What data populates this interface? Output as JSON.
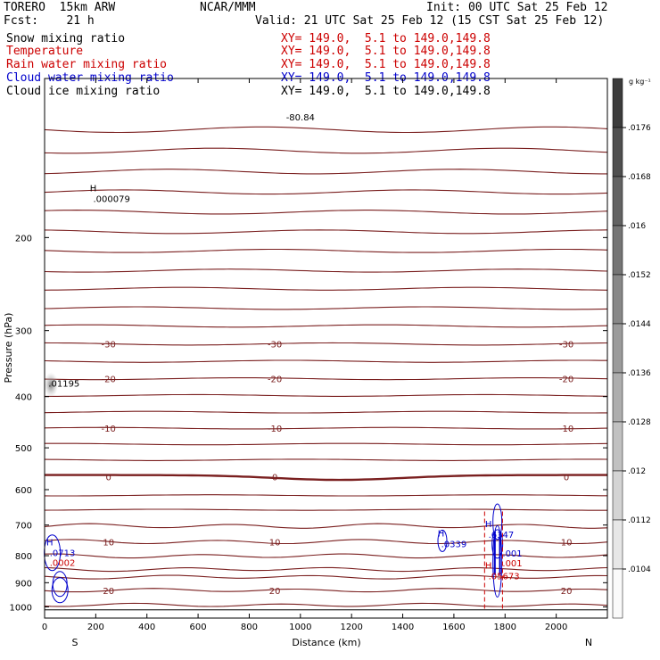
{
  "header": {
    "model": "TORERO  15km ARW",
    "center": "NCAR/MMM",
    "init": "Init: 00 UTC Sat 25 Feb 12",
    "fcst": "Fcst:    21 h",
    "valid": "Valid: 21 UTC Sat 25 Feb 12 (15 CST Sat 25 Feb 12)"
  },
  "fields": [
    {
      "name": "Snow mixing ratio",
      "xy": "",
      "color": "#000000"
    },
    {
      "name": "Temperature",
      "xy": "XY= 149.0,  5.1 to 149.0,149.8",
      "color": "#cc0000"
    },
    {
      "name": "Rain water mixing ratio",
      "xy": "XY= 149.0,  5.1 to 149.0,149.8",
      "color": "#cc0000"
    },
    {
      "name": "Cloud water mixing ratio",
      "xy": "XY= 149.0,  5.1 to 149.0,149.8",
      "color": "#0000cc"
    },
    {
      "name": "Cloud ice mixing ratio",
      "xy": "XY= 149.0,  5.1 to 149.0,149.8",
      "color": "#000000"
    }
  ],
  "snow_xy": "XY= 149.0,  5.1 to 149.0,149.8",
  "colors": {
    "temp": "#7a1f1f",
    "cloud": "#0000cc",
    "rain": "#cc0000",
    "ground": "#000000"
  },
  "chart_data": {
    "type": "line",
    "title": "",
    "xlabel": "Distance (km)",
    "ylabel": "Pressure (hPa)",
    "xlim": [
      0,
      2200
    ],
    "ylim": [
      1050,
      100
    ],
    "yscale": "log",
    "x_ticks": [
      0,
      200,
      400,
      600,
      800,
      1000,
      1200,
      1400,
      1600,
      1800,
      2000
    ],
    "y_ticks": [
      200,
      300,
      400,
      500,
      600,
      700,
      800,
      900,
      1000
    ],
    "y_tick_labels": [
      "200",
      "300",
      "400",
      "500",
      "600",
      "700",
      "800",
      "900",
      "1000"
    ],
    "x_end_labels": {
      "left": "S",
      "right": "N"
    },
    "colorbar": {
      "unit": "g kg⁻¹",
      "labels": [
        ".0176",
        ".0168",
        ".016",
        ".0152",
        ".0144",
        ".0136",
        ".0128",
        ".012",
        ".0112",
        ".0104"
      ],
      "min": 0.01,
      "max": 0.018
    },
    "temperature_isotherms": [
      {
        "p": 125,
        "label": ""
      },
      {
        "p": 137,
        "label": ""
      },
      {
        "p": 150,
        "label": ""
      },
      {
        "p": 164,
        "label": ""
      },
      {
        "p": 179,
        "label": ""
      },
      {
        "p": 195,
        "label": ""
      },
      {
        "p": 212,
        "label": ""
      },
      {
        "p": 231,
        "label": ""
      },
      {
        "p": 250,
        "label": ""
      },
      {
        "p": 272,
        "label": ""
      },
      {
        "p": 294,
        "label": ""
      },
      {
        "p": 318,
        "label": "-30"
      },
      {
        "p": 343,
        "label": ""
      },
      {
        "p": 370,
        "label": "-20"
      },
      {
        "p": 398,
        "label": ""
      },
      {
        "p": 428,
        "label": ""
      },
      {
        "p": 459,
        "label": "-10"
      },
      {
        "p": 492,
        "label": ""
      },
      {
        "p": 527,
        "label": ""
      },
      {
        "p": 567,
        "label": "0"
      },
      {
        "p": 615,
        "label": ""
      },
      {
        "p": 655,
        "label": ""
      },
      {
        "p": 703,
        "label": ""
      },
      {
        "p": 753,
        "label": "10"
      },
      {
        "p": 801,
        "label": ""
      },
      {
        "p": 849,
        "label": ""
      },
      {
        "p": 878,
        "label": ""
      },
      {
        "p": 930,
        "label": "20"
      },
      {
        "p": 992,
        "label": ""
      }
    ],
    "ground_pressure": 1015,
    "maxima_labels": [
      {
        "x": 190,
        "p": 170,
        "mark": "H",
        "value": ".000079",
        "color": "#000000"
      },
      {
        "x": 15,
        "p": 380,
        "mark": "",
        "value": ".01195",
        "color": "#000000"
      },
      {
        "x": 20,
        "p": 795,
        "mark": "H",
        "value": ".0713",
        "color": "#0000cc"
      },
      {
        "x": 20,
        "p": 830,
        "mark": "",
        "value": ".0002",
        "color": "#cc0000"
      },
      {
        "x": 1550,
        "p": 765,
        "mark": "H",
        "value": ".0339",
        "color": "#0000cc"
      },
      {
        "x": 1735,
        "p": 735,
        "mark": "H",
        "value": ".6347",
        "color": "#0000cc"
      },
      {
        "x": 1790,
        "p": 797,
        "mark": "",
        "value": ".001",
        "color": "#0000cc"
      },
      {
        "x": 1790,
        "p": 832,
        "mark": "",
        "value": ".001",
        "color": "#cc0000"
      },
      {
        "x": 1735,
        "p": 880,
        "mark": "H",
        "value": ".05673",
        "color": "#cc0000"
      }
    ],
    "top_label": {
      "x": 1000,
      "p": 120,
      "value": "-80.84"
    }
  }
}
